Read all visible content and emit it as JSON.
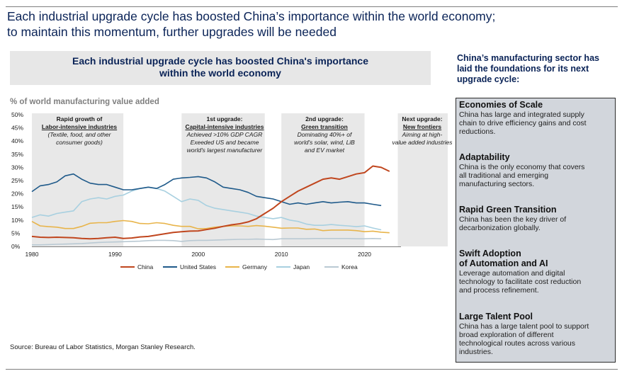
{
  "headline": {
    "line1": "Each industrial upgrade cycle has boosted China’s importance within the world economy;",
    "line2": "to maintain this momentum, further upgrades will be needed"
  },
  "chart_title": {
    "line1": "Each industrial upgrade cycle has boosted China's importance",
    "line2": "within the world economy"
  },
  "source": "Source: Bureau of Labor Statistics, Morgan Stanley Research.",
  "phases": [
    {
      "title": "Rapid growth of",
      "subtitle": "Labor-intensive industries",
      "desc": [
        "(Textile, food, and other",
        "consumer goods)"
      ]
    },
    {
      "title": "1st upgrade:",
      "subtitle": "Capital-intensive industries",
      "desc": [
        "Achieved >10% GDP CAGR",
        "Exeeded US and became",
        "world's largest manufacturer"
      ]
    },
    {
      "title": "2nd upgrade:",
      "subtitle": "Green transition",
      "desc": [
        "Dominating 40%+ of",
        "world's solar, wind, LiB",
        "and EV market"
      ]
    },
    {
      "title": "Next upgrade:",
      "subtitle": "New frontiers",
      "desc": [
        "Aiming at high-",
        "value added industries"
      ]
    }
  ],
  "sidebar": {
    "heading": [
      "China’s manufacturing sector has",
      "laid the foundations for its next",
      "upgrade cycle:"
    ],
    "cards": [
      {
        "title": [
          "Economies of Scale"
        ],
        "desc": [
          "China has large and integrated supply",
          "chain to drive efficiency gains and cost",
          "reductions."
        ]
      },
      {
        "title": [
          "Adaptability"
        ],
        "desc": [
          "China is the only economy that covers",
          "all traditional and emerging",
          "manufacturing sectors."
        ]
      },
      {
        "title": [
          "Rapid Green Transition"
        ],
        "desc": [
          "China has been the key driver of",
          "decarbonization globally."
        ]
      },
      {
        "title": [
          "Swift Adoption",
          "of Automation and AI"
        ],
        "desc": [
          "Leverage automation and digital",
          "technology to facilitate cost reduction",
          "and process refinement."
        ]
      },
      {
        "title": [
          "Large Talent Pool"
        ],
        "desc": [
          "China has a large talent pool to support",
          "broad exploration of different",
          "technological routes across various",
          "industries."
        ]
      }
    ]
  },
  "chart_data": {
    "type": "line",
    "title": "Each industrial upgrade cycle has boosted China's importance within the world economy",
    "ylabel": "% of world manufacturing value added",
    "xlabel": "",
    "xlim": [
      1980,
      2023
    ],
    "ylim": [
      0,
      50
    ],
    "y_ticks": [
      "0%",
      "5%",
      "10%",
      "15%",
      "20%",
      "25%",
      "30%",
      "35%",
      "40%",
      "45%",
      "50%"
    ],
    "x_ticks": [
      "1980",
      "1990",
      "2000",
      "2010",
      "2020"
    ],
    "x_tick_values": [
      1980,
      1990,
      2000,
      2010,
      2020
    ],
    "grid": false,
    "legend_position": "bottom",
    "shaded_periods": [
      [
        1980,
        1991
      ],
      [
        1998,
        2008
      ],
      [
        2010,
        2020
      ],
      [
        2024,
        2030
      ]
    ],
    "x": [
      1980,
      1981,
      1982,
      1983,
      1984,
      1985,
      1986,
      1987,
      1988,
      1989,
      1990,
      1991,
      1992,
      1993,
      1994,
      1995,
      1996,
      1997,
      1998,
      1999,
      2000,
      2001,
      2002,
      2003,
      2004,
      2005,
      2006,
      2007,
      2008,
      2009,
      2010,
      2011,
      2012,
      2013,
      2014,
      2015,
      2016,
      2017,
      2018,
      2019,
      2020,
      2021,
      2022,
      2023
    ],
    "series": [
      {
        "name": "China",
        "color": "#c0461e",
        "values": [
          3.8,
          3.5,
          3.4,
          3.5,
          3.4,
          3.3,
          3.0,
          2.9,
          3.0,
          3.3,
          3.5,
          3.0,
          3.2,
          3.6,
          3.8,
          4.3,
          4.8,
          5.3,
          5.6,
          5.8,
          5.9,
          6.4,
          6.9,
          7.6,
          8.2,
          8.6,
          9.3,
          10.5,
          12.5,
          14.5,
          17.0,
          19.0,
          21.0,
          22.5,
          24.0,
          25.5,
          26.0,
          25.5,
          26.5,
          27.5,
          28.0,
          30.5,
          30.0,
          28.5
        ]
      },
      {
        "name": "United States",
        "color": "#1f5a8a",
        "values": [
          20.8,
          23.0,
          23.5,
          24.5,
          26.8,
          27.5,
          25.5,
          24.0,
          23.5,
          23.5,
          22.5,
          21.5,
          21.5,
          22.0,
          22.5,
          22.0,
          23.5,
          25.5,
          26.0,
          26.2,
          26.5,
          26.0,
          24.5,
          22.5,
          22.0,
          21.5,
          20.5,
          19.0,
          18.5,
          18.0,
          17.0,
          16.0,
          16.5,
          16.0,
          16.5,
          17.0,
          16.5,
          16.8,
          17.0,
          16.5,
          16.5,
          16.0,
          15.5,
          null
        ]
      },
      {
        "name": "Germany",
        "color": "#e8b44a",
        "values": [
          9.5,
          7.8,
          7.5,
          7.3,
          6.8,
          6.8,
          7.6,
          8.8,
          9.0,
          9.0,
          9.5,
          9.8,
          9.5,
          8.7,
          8.6,
          9.0,
          8.7,
          8.0,
          7.6,
          7.6,
          6.7,
          6.8,
          7.3,
          7.6,
          7.8,
          7.8,
          7.6,
          7.9,
          7.7,
          7.3,
          6.9,
          7.0,
          7.0,
          6.5,
          6.6,
          6.0,
          6.2,
          6.2,
          6.2,
          6.0,
          5.6,
          5.8,
          5.4,
          5.2
        ]
      },
      {
        "name": "Japan",
        "color": "#a8d0e0",
        "values": [
          11.0,
          12.0,
          11.5,
          12.5,
          13.0,
          13.5,
          17.0,
          18.0,
          18.5,
          18.0,
          19.0,
          19.5,
          21.0,
          22.0,
          22.5,
          22.0,
          21.0,
          19.0,
          17.0,
          18.0,
          17.5,
          15.5,
          14.5,
          14.0,
          13.5,
          13.0,
          12.5,
          11.5,
          11.0,
          10.5,
          11.0,
          10.0,
          9.5,
          8.5,
          8.0,
          8.0,
          8.3,
          8.0,
          7.8,
          7.5,
          7.8,
          7.0,
          6.3,
          null
        ]
      },
      {
        "name": "Korea",
        "color": "#b9c9d3",
        "values": [
          0.6,
          0.6,
          0.7,
          0.8,
          0.9,
          1.0,
          1.1,
          1.3,
          1.5,
          1.6,
          1.7,
          1.8,
          1.9,
          2.0,
          2.2,
          2.3,
          2.3,
          2.2,
          1.9,
          2.2,
          2.3,
          2.3,
          2.4,
          2.5,
          2.6,
          2.7,
          2.7,
          2.8,
          2.7,
          2.6,
          2.9,
          2.9,
          2.9,
          2.9,
          3.0,
          3.0,
          3.0,
          3.0,
          3.0,
          2.9,
          2.9,
          3.0,
          2.9,
          null
        ]
      }
    ]
  }
}
